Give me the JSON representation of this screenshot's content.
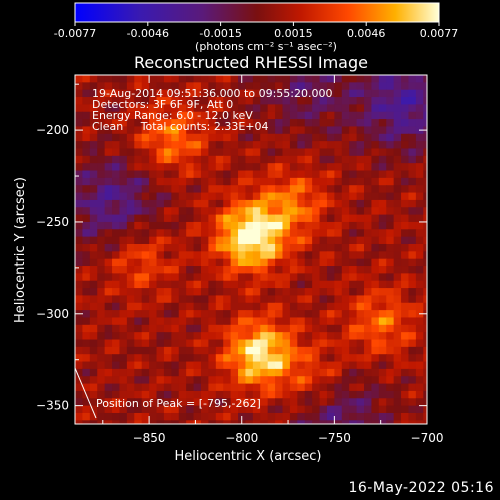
{
  "colorbar": {
    "ticks": [
      "-0.0077",
      "-0.0046",
      "-0.0015",
      "0.0015",
      "0.0046",
      "0.0077"
    ],
    "units": "(photons cm⁻² s⁻¹ asec⁻²)",
    "min": -0.0077,
    "max": 0.0077
  },
  "chart_data": {
    "type": "heatmap",
    "title": "Reconstructed RHESSI Image",
    "xlabel": "Heliocentric X (arcsec)",
    "ylabel": "Heliocentric Y (arcsec)",
    "xlim": [
      -890,
      -700
    ],
    "ylim": [
      -360,
      -170
    ],
    "x_ticks": [
      -850,
      -800,
      -750,
      -700
    ],
    "y_ticks": [
      -200,
      -250,
      -300,
      -350
    ],
    "x_tick_labels": [
      "−850",
      "−800",
      "−750",
      "−700"
    ],
    "y_tick_labels": [
      "−200",
      "−250",
      "−300",
      "−350"
    ],
    "annotations": [
      "19-Aug-2014 09:51:36.000 to 09:55:20.000",
      "Detectors: 3F 6F 9F, Att 0",
      "Energy Range: 6.0 - 12.0 keV",
      "Clean     Total counts: 2.33E+04"
    ],
    "peak_label": "Position of Peak = [-795,-262]",
    "peak": [
      -795,
      -262
    ],
    "sources": [
      {
        "x": -795,
        "y": -258,
        "intensity": 1.0
      },
      {
        "x": -790,
        "y": -322,
        "intensity": 0.88
      },
      {
        "x": -772,
        "y": -240,
        "intensity": 0.45
      },
      {
        "x": -838,
        "y": -205,
        "intensity": 0.5
      },
      {
        "x": -725,
        "y": -305,
        "intensity": 0.45
      },
      {
        "x": -855,
        "y": -270,
        "intensity": 0.38
      },
      {
        "x": -760,
        "y": -335,
        "intensity": 0.35
      }
    ],
    "negative_regions": [
      {
        "x": -712,
        "y": -185,
        "intensity": -0.8
      },
      {
        "x": -870,
        "y": -240,
        "intensity": -0.7
      },
      {
        "x": -765,
        "y": -178,
        "intensity": -0.45
      },
      {
        "x": -748,
        "y": -355,
        "intensity": -0.6
      }
    ]
  },
  "footer": {
    "date": "16-May-2022 05:16"
  }
}
